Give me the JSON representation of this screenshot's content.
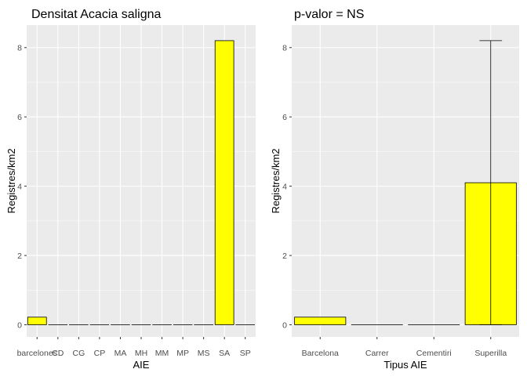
{
  "chart_data": [
    {
      "type": "bar",
      "title": "Densitat Acacia saligna",
      "xlabel": "AIE",
      "ylabel": "Registres/km2",
      "categories": [
        "barcelones",
        "CD",
        "CG",
        "CP",
        "MA",
        "MH",
        "MM",
        "MP",
        "MS",
        "SA",
        "SP"
      ],
      "values": [
        0.22,
        0,
        0,
        0,
        0,
        0,
        0,
        0,
        0,
        8.2,
        0
      ],
      "ylim": [
        -0.35,
        8.65
      ],
      "yticks": [
        0,
        2,
        4,
        6,
        8
      ],
      "fill": "#FFFF00",
      "panel_bg": "#EBEBEB",
      "grid": true
    },
    {
      "type": "bar",
      "title": "p-valor = NS",
      "xlabel": "Tipus AIE",
      "ylabel": "Registres/km2",
      "categories": [
        "Barcelona",
        "Carrer",
        "Cementiri",
        "Superilla"
      ],
      "values": [
        0.22,
        0,
        0,
        4.1
      ],
      "error_bars": [
        null,
        null,
        null,
        [
          0,
          8.2
        ]
      ],
      "ylim": [
        -0.35,
        8.65
      ],
      "yticks": [
        0,
        2,
        4,
        6,
        8
      ],
      "fill": "#FFFF00",
      "panel_bg": "#EBEBEB",
      "grid": true
    }
  ]
}
